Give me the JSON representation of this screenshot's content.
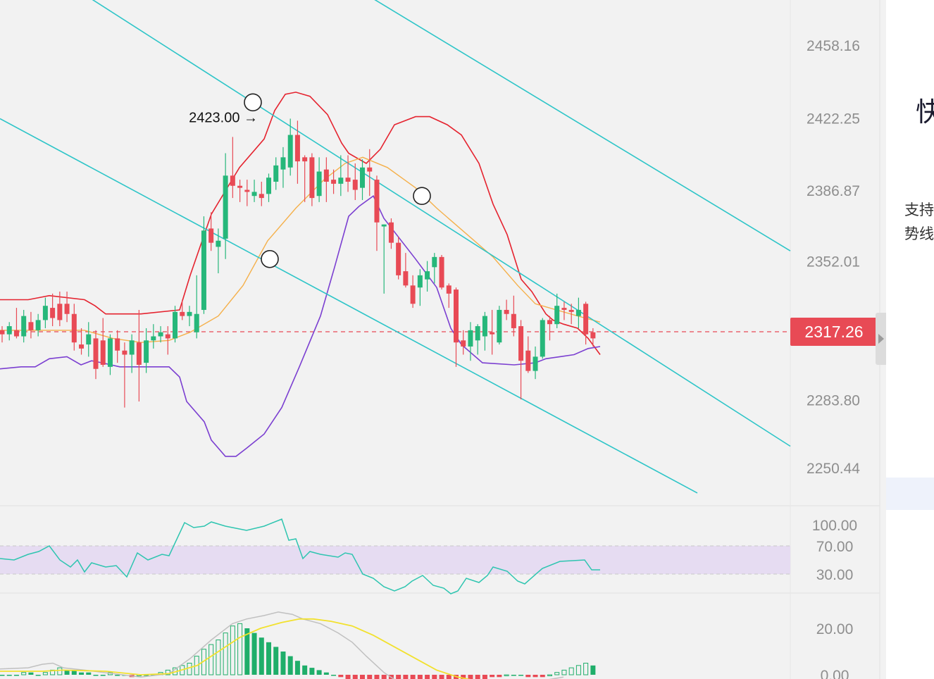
{
  "chart_data": {
    "type": "candlestick",
    "price_axis": {
      "ticks": [
        "2458.16",
        "2422.25",
        "2386.87",
        "2352.01",
        "2283.80",
        "2250.44"
      ],
      "range": [
        2238,
        2480
      ]
    },
    "current_price": {
      "label": "2317.26",
      "value": 2317.26,
      "color": "#e84a55"
    },
    "annotation": {
      "label": "2423.00 →",
      "value": 2423.0
    },
    "candles": [
      [
        2318,
        2320,
        2312,
        2316
      ],
      [
        2316,
        2322,
        2313,
        2320
      ],
      [
        2318,
        2329,
        2314,
        2315
      ],
      [
        2315,
        2328,
        2312,
        2325
      ],
      [
        2322,
        2327,
        2314,
        2318
      ],
      [
        2318,
        2326,
        2315,
        2323
      ],
      [
        2323,
        2334,
        2319,
        2330
      ],
      [
        2329,
        2336,
        2320,
        2324
      ],
      [
        2331,
        2337,
        2320,
        2323
      ],
      [
        2331,
        2337,
        2322,
        2326
      ],
      [
        2326,
        2331,
        2308,
        2312
      ],
      [
        2311,
        2319,
        2306,
        2309
      ],
      [
        2311,
        2322,
        2305,
        2316
      ],
      [
        2314,
        2318,
        2294,
        2299
      ],
      [
        2313,
        2324,
        2300,
        2301
      ],
      [
        2300,
        2316,
        2296,
        2314
      ],
      [
        2314,
        2318,
        2302,
        2308
      ],
      [
        2308,
        2312,
        2280,
        2306
      ],
      [
        2306,
        2316,
        2297,
        2313
      ],
      [
        2312,
        2328,
        2283,
        2301
      ],
      [
        2302,
        2319,
        2297,
        2313
      ],
      [
        2313,
        2321,
        2309,
        2315
      ],
      [
        2315,
        2320,
        2312,
        2317
      ],
      [
        2316,
        2320,
        2306,
        2314
      ],
      [
        2314,
        2330,
        2312,
        2327
      ],
      [
        2327,
        2333,
        2323,
        2325
      ],
      [
        2325,
        2330,
        2320,
        2327
      ],
      [
        2317,
        2345,
        2314,
        2326
      ],
      [
        2328,
        2374,
        2326,
        2367
      ],
      [
        2368,
        2376,
        2357,
        2361
      ],
      [
        2359,
        2368,
        2346,
        2362
      ],
      [
        2363,
        2405,
        2353,
        2394
      ],
      [
        2394,
        2413,
        2383,
        2389
      ],
      [
        2389,
        2392,
        2381,
        2388
      ],
      [
        2387,
        2392,
        2379,
        2386
      ],
      [
        2384,
        2392,
        2381,
        2386
      ],
      [
        2385,
        2391,
        2379,
        2383
      ],
      [
        2385,
        2395,
        2381,
        2393
      ],
      [
        2391,
        2403,
        2387,
        2399
      ],
      [
        2397,
        2408,
        2388,
        2403
      ],
      [
        2398,
        2422,
        2394,
        2414
      ],
      [
        2414,
        2421,
        2390,
        2401
      ],
      [
        2403,
        2404,
        2381,
        2401
      ],
      [
        2403,
        2405,
        2379,
        2383
      ],
      [
        2384,
        2403,
        2381,
        2396
      ],
      [
        2397,
        2403,
        2381,
        2391
      ],
      [
        2392,
        2397,
        2385,
        2390
      ],
      [
        2390,
        2404,
        2384,
        2393
      ],
      [
        2393,
        2404,
        2386,
        2391
      ],
      [
        2392,
        2400,
        2382,
        2387
      ],
      [
        2388,
        2402,
        2382,
        2398
      ],
      [
        2398,
        2407,
        2384,
        2396
      ],
      [
        2392,
        2394,
        2357,
        2371
      ],
      [
        2369,
        2370,
        2336,
        2370
      ],
      [
        2371,
        2373,
        2358,
        2361
      ],
      [
        2361,
        2364,
        2343,
        2345
      ],
      [
        2347,
        2356,
        2339,
        2340
      ],
      [
        2340,
        2345,
        2329,
        2331
      ],
      [
        2339,
        2348,
        2330,
        2345
      ],
      [
        2343,
        2352,
        2337,
        2347
      ],
      [
        2349,
        2356,
        2341,
        2354
      ],
      [
        2354,
        2355,
        2338,
        2339
      ],
      [
        2340,
        2341,
        2329,
        2336
      ],
      [
        2338,
        2339,
        2300,
        2312
      ],
      [
        2313,
        2318,
        2306,
        2310
      ],
      [
        2310,
        2322,
        2303,
        2318
      ],
      [
        2313,
        2321,
        2306,
        2320
      ],
      [
        2315,
        2327,
        2308,
        2325
      ],
      [
        2317,
        2328,
        2306,
        2316
      ],
      [
        2312,
        2330,
        2311,
        2328
      ],
      [
        2328,
        2333,
        2323,
        2326
      ],
      [
        2326,
        2335,
        2315,
        2319
      ],
      [
        2320,
        2323,
        2284,
        2303
      ],
      [
        2308,
        2315,
        2297,
        2298
      ],
      [
        2298,
        2310,
        2294,
        2305
      ],
      [
        2305,
        2324,
        2304,
        2323
      ],
      [
        2323,
        2325,
        2313,
        2321
      ],
      [
        2321,
        2336,
        2319,
        2330
      ],
      [
        2329,
        2332,
        2323,
        2328
      ],
      [
        2328,
        2331,
        2321,
        2327
      ],
      [
        2325,
        2334,
        2319,
        2328
      ],
      [
        2331,
        2332,
        2311,
        2316
      ],
      [
        2317,
        2319,
        2310,
        2314
      ]
    ],
    "bollinger": {
      "upper": [
        [
          0,
          2333
        ],
        [
          40,
          2333
        ],
        [
          55,
          2334
        ],
        [
          70,
          2335
        ],
        [
          120,
          2333
        ],
        [
          135,
          2330
        ],
        [
          150,
          2326
        ],
        [
          200,
          2326
        ],
        [
          255,
          2328
        ],
        [
          270,
          2345
        ],
        [
          300,
          2375
        ],
        [
          340,
          2398
        ],
        [
          375,
          2412
        ],
        [
          390,
          2426
        ],
        [
          405,
          2434
        ],
        [
          420,
          2435
        ],
        [
          440,
          2433
        ],
        [
          465,
          2424
        ],
        [
          485,
          2410
        ],
        [
          495,
          2405
        ],
        [
          520,
          2400
        ],
        [
          540,
          2407
        ],
        [
          560,
          2419
        ],
        [
          590,
          2423
        ],
        [
          610,
          2423
        ],
        [
          635,
          2419
        ],
        [
          655,
          2414
        ],
        [
          680,
          2400
        ],
        [
          700,
          2380
        ],
        [
          720,
          2365
        ],
        [
          740,
          2343
        ],
        [
          755,
          2337
        ],
        [
          775,
          2326
        ],
        [
          785,
          2323
        ],
        [
          800,
          2321
        ],
        [
          820,
          2319
        ],
        [
          835,
          2314
        ],
        [
          852,
          2306
        ]
      ],
      "mid": [
        [
          0,
          2318
        ],
        [
          120,
          2318
        ],
        [
          160,
          2314
        ],
        [
          200,
          2312
        ],
        [
          240,
          2313
        ],
        [
          270,
          2317
        ],
        [
          310,
          2325
        ],
        [
          345,
          2340
        ],
        [
          380,
          2362
        ],
        [
          420,
          2378
        ],
        [
          460,
          2392
        ],
        [
          490,
          2400
        ],
        [
          515,
          2403
        ],
        [
          550,
          2398
        ],
        [
          590,
          2388
        ],
        [
          620,
          2378
        ],
        [
          660,
          2366
        ],
        [
          700,
          2354
        ],
        [
          735,
          2340
        ],
        [
          760,
          2331
        ],
        [
          790,
          2328
        ],
        [
          820,
          2325
        ],
        [
          852,
          2322
        ]
      ],
      "lower": [
        [
          0,
          2299
        ],
        [
          30,
          2300
        ],
        [
          50,
          2300
        ],
        [
          70,
          2304
        ],
        [
          95,
          2305
        ],
        [
          115,
          2301
        ],
        [
          130,
          2303
        ],
        [
          145,
          2302
        ],
        [
          170,
          2300
        ],
        [
          200,
          2300
        ],
        [
          240,
          2300
        ],
        [
          255,
          2295
        ],
        [
          265,
          2283
        ],
        [
          290,
          2273
        ],
        [
          300,
          2264
        ],
        [
          320,
          2256
        ],
        [
          335,
          2256
        ],
        [
          350,
          2260
        ],
        [
          375,
          2267
        ],
        [
          400,
          2280
        ],
        [
          425,
          2300
        ],
        [
          455,
          2325
        ],
        [
          475,
          2349
        ],
        [
          495,
          2374
        ],
        [
          510,
          2379
        ],
        [
          530,
          2384
        ],
        [
          545,
          2373
        ],
        [
          590,
          2353
        ],
        [
          620,
          2339
        ],
        [
          640,
          2319
        ],
        [
          655,
          2311
        ],
        [
          685,
          2302
        ],
        [
          730,
          2301
        ],
        [
          760,
          2302
        ],
        [
          775,
          2304
        ],
        [
          795,
          2305
        ],
        [
          815,
          2306
        ],
        [
          835,
          2309
        ],
        [
          852,
          2310
        ]
      ]
    },
    "channel_lines": [
      {
        "x1": 120,
        "y1": 2483,
        "x2": 1122,
        "y2": 2261
      },
      {
        "x1": 520,
        "y1": 2483,
        "x2": 1122,
        "y2": 2357
      },
      {
        "x1": 0,
        "y1": 2422,
        "x2": 990,
        "y2": 2238
      }
    ],
    "touch_points": [
      [
        359,
        2430
      ],
      [
        383,
        2353
      ],
      [
        599,
        2384
      ]
    ],
    "rsi": {
      "ticks": [
        "100.00",
        "70.00",
        "30.00"
      ],
      "upper_band": 70,
      "lower_band": 30,
      "points": [
        [
          0,
          52
        ],
        [
          20,
          50
        ],
        [
          40,
          58
        ],
        [
          55,
          62
        ],
        [
          70,
          70
        ],
        [
          85,
          50
        ],
        [
          100,
          40
        ],
        [
          110,
          50
        ],
        [
          120,
          33
        ],
        [
          130,
          46
        ],
        [
          150,
          40
        ],
        [
          165,
          42
        ],
        [
          180,
          26
        ],
        [
          195,
          60
        ],
        [
          210,
          50
        ],
        [
          230,
          58
        ],
        [
          240,
          56
        ],
        [
          262,
          103
        ],
        [
          275,
          96
        ],
        [
          290,
          98
        ],
        [
          300,
          104
        ],
        [
          320,
          98
        ],
        [
          350,
          92
        ],
        [
          375,
          98
        ],
        [
          400,
          108
        ],
        [
          410,
          78
        ],
        [
          420,
          80
        ],
        [
          430,
          52
        ],
        [
          440,
          62
        ],
        [
          455,
          58
        ],
        [
          480,
          54
        ],
        [
          490,
          60
        ],
        [
          500,
          58
        ],
        [
          515,
          30
        ],
        [
          530,
          24
        ],
        [
          545,
          12
        ],
        [
          560,
          6
        ],
        [
          575,
          12
        ],
        [
          585,
          20
        ],
        [
          600,
          28
        ],
        [
          615,
          14
        ],
        [
          630,
          10
        ],
        [
          640,
          2
        ],
        [
          650,
          6
        ],
        [
          662,
          24
        ],
        [
          680,
          18
        ],
        [
          692,
          28
        ],
        [
          700,
          40
        ],
        [
          720,
          34
        ],
        [
          735,
          20
        ],
        [
          745,
          16
        ],
        [
          770,
          38
        ],
        [
          795,
          48
        ],
        [
          830,
          50
        ],
        [
          840,
          36
        ],
        [
          852,
          36
        ]
      ]
    },
    "macd": {
      "tick": "20.00",
      "tick_zero": "0.00",
      "hist": [
        0,
        0,
        0,
        1,
        1,
        0,
        1,
        2,
        3,
        2,
        2,
        1,
        1,
        0,
        0,
        1,
        0,
        0,
        -1,
        0,
        0,
        0,
        1,
        2,
        3,
        4,
        5,
        8,
        11,
        13,
        15,
        18,
        21,
        22,
        20,
        18,
        16,
        14,
        12,
        10,
        8,
        6,
        4,
        3,
        2,
        1,
        0,
        -1,
        -2,
        -4,
        -6,
        -8,
        -10,
        -12,
        -13,
        -14,
        -13,
        -12,
        -11,
        -10,
        -9,
        -8,
        -7,
        -6,
        -5,
        -4,
        -3,
        -2,
        -1,
        -1,
        0,
        0,
        0,
        -1,
        -1,
        -1,
        0,
        1,
        2,
        3,
        4,
        5,
        4
      ],
      "dif": [
        [
          0,
          2.5
        ],
        [
          40,
          3
        ],
        [
          60,
          4.5
        ],
        [
          75,
          5
        ],
        [
          90,
          3
        ],
        [
          120,
          2
        ],
        [
          200,
          -1
        ],
        [
          240,
          0.5
        ],
        [
          270,
          7
        ],
        [
          300,
          15
        ],
        [
          330,
          22
        ],
        [
          350,
          24
        ],
        [
          375,
          25.5
        ],
        [
          395,
          27
        ],
        [
          415,
          26
        ],
        [
          430,
          24
        ],
        [
          455,
          22
        ],
        [
          480,
          18
        ],
        [
          500,
          14
        ],
        [
          520,
          8
        ],
        [
          545,
          1
        ],
        [
          560,
          -2
        ],
        [
          600,
          -6
        ],
        [
          640,
          -8
        ],
        [
          700,
          -6
        ],
        [
          760,
          -3
        ],
        [
          800,
          -1
        ]
      ],
      "dea": [
        [
          0,
          1.5
        ],
        [
          60,
          1.5
        ],
        [
          90,
          2
        ],
        [
          150,
          1.5
        ],
        [
          200,
          0
        ],
        [
          240,
          0.5
        ],
        [
          280,
          4
        ],
        [
          310,
          10
        ],
        [
          340,
          16
        ],
        [
          370,
          20
        ],
        [
          400,
          22.5
        ],
        [
          425,
          24
        ],
        [
          445,
          24
        ],
        [
          470,
          23
        ],
        [
          500,
          21
        ],
        [
          530,
          17
        ],
        [
          560,
          12
        ],
        [
          590,
          7
        ],
        [
          620,
          2
        ],
        [
          650,
          -1
        ],
        [
          700,
          -4
        ],
        [
          760,
          -5
        ],
        [
          800,
          -4
        ]
      ]
    }
  },
  "side_panel": {
    "title": "快",
    "line1": "支持",
    "line2": "势线"
  }
}
